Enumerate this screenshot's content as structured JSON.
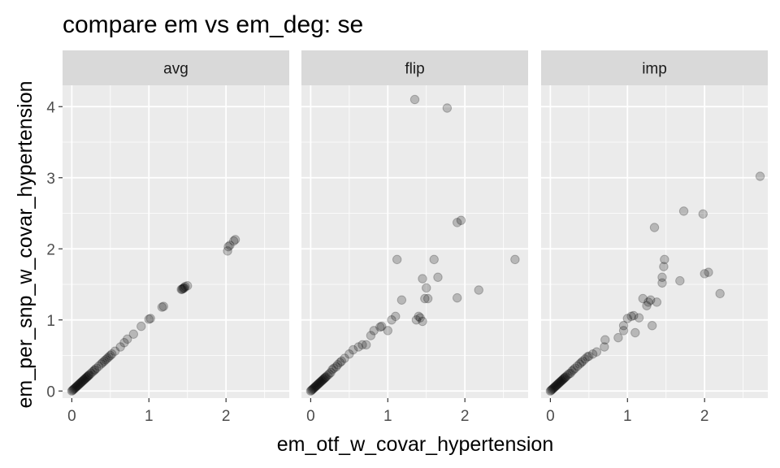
{
  "chart_data": {
    "type": "scatter",
    "title": "compare em vs em_deg: se",
    "xlabel": "em_otf_w_covar_hypertension",
    "ylabel": "em_per_snp_w_covar_hypertension",
    "xlim": [
      -0.12,
      2.82
    ],
    "ylim": [
      -0.1,
      4.3
    ],
    "x_ticks": [
      0,
      1,
      2
    ],
    "x_tick_labels": [
      "0",
      "1",
      "2"
    ],
    "y_ticks": [
      0,
      1,
      2,
      3,
      4
    ],
    "y_tick_labels": [
      "0",
      "1",
      "2",
      "3",
      "4"
    ],
    "grid": true,
    "point_color": "#000000",
    "point_opacity": 0.22,
    "panels": [
      {
        "name": "avg",
        "points": [
          [
            0.0,
            0.0
          ],
          [
            0.01,
            0.01
          ],
          [
            0.02,
            0.02
          ],
          [
            0.03,
            0.03
          ],
          [
            0.04,
            0.04
          ],
          [
            0.05,
            0.05
          ],
          [
            0.06,
            0.06
          ],
          [
            0.07,
            0.07
          ],
          [
            0.08,
            0.08
          ],
          [
            0.09,
            0.09
          ],
          [
            0.1,
            0.1
          ],
          [
            0.11,
            0.11
          ],
          [
            0.12,
            0.12
          ],
          [
            0.13,
            0.13
          ],
          [
            0.14,
            0.14
          ],
          [
            0.15,
            0.15
          ],
          [
            0.16,
            0.16
          ],
          [
            0.17,
            0.17
          ],
          [
            0.18,
            0.18
          ],
          [
            0.19,
            0.19
          ],
          [
            0.2,
            0.2
          ],
          [
            0.21,
            0.21
          ],
          [
            0.22,
            0.22
          ],
          [
            0.23,
            0.23
          ],
          [
            0.25,
            0.25
          ],
          [
            0.27,
            0.27
          ],
          [
            0.29,
            0.29
          ],
          [
            0.3,
            0.3
          ],
          [
            0.32,
            0.32
          ],
          [
            0.35,
            0.35
          ],
          [
            0.38,
            0.38
          ],
          [
            0.4,
            0.4
          ],
          [
            0.42,
            0.42
          ],
          [
            0.44,
            0.44
          ],
          [
            0.46,
            0.46
          ],
          [
            0.48,
            0.48
          ],
          [
            0.5,
            0.5
          ],
          [
            0.52,
            0.52
          ],
          [
            0.56,
            0.56
          ],
          [
            0.63,
            0.62
          ],
          [
            0.68,
            0.68
          ],
          [
            0.72,
            0.73
          ],
          [
            0.8,
            0.8
          ],
          [
            0.9,
            0.91
          ],
          [
            1.0,
            1.01
          ],
          [
            1.02,
            1.02
          ],
          [
            1.17,
            1.18
          ],
          [
            1.19,
            1.19
          ],
          [
            1.42,
            1.43
          ],
          [
            1.43,
            1.43
          ],
          [
            1.44,
            1.44
          ],
          [
            1.45,
            1.45
          ],
          [
            1.46,
            1.45
          ],
          [
            1.47,
            1.47
          ],
          [
            1.5,
            1.48
          ],
          [
            2.02,
            1.97
          ],
          [
            2.03,
            2.03
          ],
          [
            2.05,
            2.05
          ],
          [
            2.1,
            2.11
          ],
          [
            2.12,
            2.13
          ]
        ]
      },
      {
        "name": "flip",
        "points": [
          [
            0.0,
            0.0
          ],
          [
            0.01,
            0.01
          ],
          [
            0.02,
            0.02
          ],
          [
            0.03,
            0.03
          ],
          [
            0.04,
            0.04
          ],
          [
            0.05,
            0.05
          ],
          [
            0.06,
            0.06
          ],
          [
            0.07,
            0.07
          ],
          [
            0.08,
            0.08
          ],
          [
            0.09,
            0.09
          ],
          [
            0.1,
            0.1
          ],
          [
            0.11,
            0.11
          ],
          [
            0.12,
            0.12
          ],
          [
            0.13,
            0.13
          ],
          [
            0.14,
            0.14
          ],
          [
            0.15,
            0.15
          ],
          [
            0.16,
            0.16
          ],
          [
            0.17,
            0.17
          ],
          [
            0.18,
            0.18
          ],
          [
            0.19,
            0.19
          ],
          [
            0.2,
            0.2
          ],
          [
            0.22,
            0.22
          ],
          [
            0.24,
            0.24
          ],
          [
            0.26,
            0.26
          ],
          [
            0.28,
            0.3
          ],
          [
            0.3,
            0.32
          ],
          [
            0.33,
            0.34
          ],
          [
            0.35,
            0.37
          ],
          [
            0.38,
            0.4
          ],
          [
            0.4,
            0.42
          ],
          [
            0.44,
            0.46
          ],
          [
            0.5,
            0.52
          ],
          [
            0.55,
            0.58
          ],
          [
            0.62,
            0.62
          ],
          [
            0.67,
            0.65
          ],
          [
            0.72,
            0.65
          ],
          [
            0.78,
            0.78
          ],
          [
            0.82,
            0.85
          ],
          [
            0.9,
            0.9
          ],
          [
            0.92,
            0.91
          ],
          [
            1.0,
            0.85
          ],
          [
            1.05,
            1.0
          ],
          [
            1.1,
            1.05
          ],
          [
            1.12,
            1.85
          ],
          [
            1.18,
            1.28
          ],
          [
            1.35,
            4.1
          ],
          [
            1.37,
            1.0
          ],
          [
            1.4,
            1.05
          ],
          [
            1.42,
            1.03
          ],
          [
            1.45,
            0.98
          ],
          [
            1.48,
            1.3
          ],
          [
            1.5,
            1.45
          ],
          [
            1.52,
            1.3
          ],
          [
            1.45,
            1.58
          ],
          [
            1.6,
            1.85
          ],
          [
            1.65,
            1.6
          ],
          [
            1.77,
            3.98
          ],
          [
            1.9,
            2.37
          ],
          [
            1.95,
            2.4
          ],
          [
            1.9,
            1.31
          ],
          [
            2.18,
            1.42
          ],
          [
            2.65,
            1.85
          ]
        ]
      },
      {
        "name": "imp",
        "points": [
          [
            0.0,
            0.0
          ],
          [
            0.01,
            0.01
          ],
          [
            0.02,
            0.02
          ],
          [
            0.03,
            0.03
          ],
          [
            0.04,
            0.04
          ],
          [
            0.05,
            0.05
          ],
          [
            0.06,
            0.06
          ],
          [
            0.07,
            0.07
          ],
          [
            0.08,
            0.08
          ],
          [
            0.09,
            0.09
          ],
          [
            0.1,
            0.1
          ],
          [
            0.11,
            0.11
          ],
          [
            0.12,
            0.12
          ],
          [
            0.13,
            0.13
          ],
          [
            0.14,
            0.14
          ],
          [
            0.15,
            0.15
          ],
          [
            0.16,
            0.16
          ],
          [
            0.17,
            0.17
          ],
          [
            0.18,
            0.18
          ],
          [
            0.19,
            0.19
          ],
          [
            0.2,
            0.2
          ],
          [
            0.22,
            0.22
          ],
          [
            0.24,
            0.24
          ],
          [
            0.26,
            0.25
          ],
          [
            0.28,
            0.28
          ],
          [
            0.3,
            0.3
          ],
          [
            0.32,
            0.32
          ],
          [
            0.35,
            0.35
          ],
          [
            0.38,
            0.38
          ],
          [
            0.4,
            0.4
          ],
          [
            0.42,
            0.42
          ],
          [
            0.45,
            0.45
          ],
          [
            0.48,
            0.48
          ],
          [
            0.5,
            0.49
          ],
          [
            0.55,
            0.52
          ],
          [
            0.6,
            0.55
          ],
          [
            0.7,
            0.62
          ],
          [
            0.71,
            0.72
          ],
          [
            0.88,
            0.75
          ],
          [
            0.95,
            0.85
          ],
          [
            0.95,
            0.92
          ],
          [
            1.0,
            1.02
          ],
          [
            1.05,
            1.05
          ],
          [
            1.08,
            1.06
          ],
          [
            1.1,
            0.82
          ],
          [
            1.15,
            1.03
          ],
          [
            1.2,
            1.3
          ],
          [
            1.25,
            1.2
          ],
          [
            1.27,
            1.25
          ],
          [
            1.3,
            1.28
          ],
          [
            1.32,
            0.92
          ],
          [
            1.35,
            2.3
          ],
          [
            1.38,
            1.25
          ],
          [
            1.45,
            1.52
          ],
          [
            1.45,
            1.6
          ],
          [
            1.47,
            1.75
          ],
          [
            1.48,
            1.85
          ],
          [
            1.68,
            1.55
          ],
          [
            1.73,
            2.53
          ],
          [
            1.98,
            2.49
          ],
          [
            2.0,
            1.65
          ],
          [
            2.05,
            1.67
          ],
          [
            2.2,
            1.37
          ],
          [
            2.72,
            3.02
          ]
        ]
      }
    ]
  }
}
